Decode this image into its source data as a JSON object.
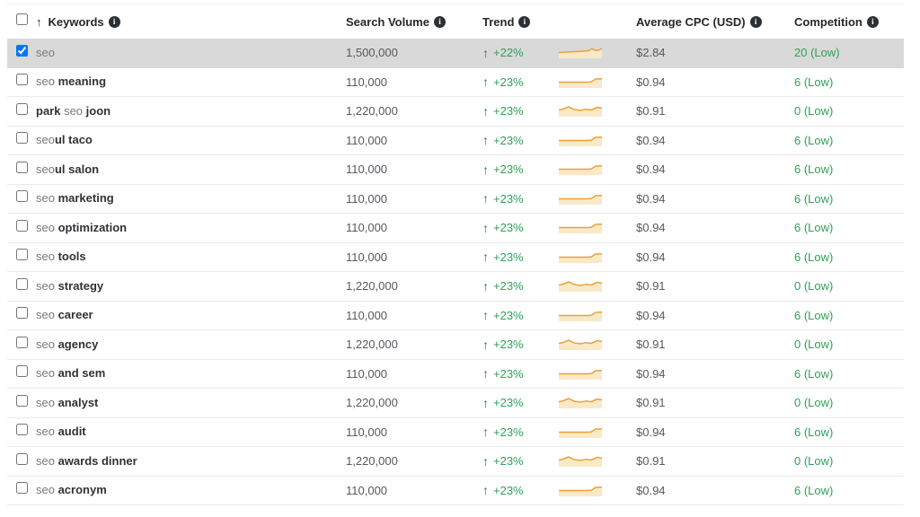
{
  "table": {
    "header": {
      "select_all_checked": false,
      "sort_arrow": "↑",
      "keywords_label": "Keywords",
      "search_volume_label": "Search Volume",
      "trend_label": "Trend",
      "avg_cpc_label": "Average CPC (USD)",
      "competition_label": "Competition",
      "info_icon_glyph": "i"
    },
    "colors": {
      "selected_row_bg": "#d9d9d9",
      "green_text": "#2ea157",
      "green_arrow": "#1d7d41",
      "spark_stroke": "#e9a23b",
      "spark_fill": "#f8e9c8"
    },
    "rows": [
      {
        "checked": true,
        "selected": true,
        "keyword_parts": [
          {
            "text": "seo",
            "bold": false
          }
        ],
        "search_volume": "1,500,000",
        "trend_arrow": "↑",
        "trend": "+22%",
        "spark": "rise-wiggle",
        "avg_cpc": "$2.84",
        "competition": "20 (Low)"
      },
      {
        "checked": false,
        "selected": false,
        "keyword_parts": [
          {
            "text": "seo",
            "bold": false
          },
          {
            "text": " meaning",
            "bold": true
          }
        ],
        "search_volume": "110,000",
        "trend_arrow": "↑",
        "trend": "+23%",
        "spark": "step",
        "avg_cpc": "$0.94",
        "competition": "6 (Low)"
      },
      {
        "checked": false,
        "selected": false,
        "keyword_parts": [
          {
            "text": "park ",
            "bold": true
          },
          {
            "text": "seo",
            "bold": false
          },
          {
            "text": " joon",
            "bold": true
          }
        ],
        "search_volume": "1,220,000",
        "trend_arrow": "↑",
        "trend": "+23%",
        "spark": "wavy",
        "avg_cpc": "$0.91",
        "competition": "0 (Low)"
      },
      {
        "checked": false,
        "selected": false,
        "keyword_parts": [
          {
            "text": "seo",
            "bold": false
          },
          {
            "text": "ul taco",
            "bold": true
          }
        ],
        "search_volume": "110,000",
        "trend_arrow": "↑",
        "trend": "+23%",
        "spark": "step",
        "avg_cpc": "$0.94",
        "competition": "6 (Low)"
      },
      {
        "checked": false,
        "selected": false,
        "keyword_parts": [
          {
            "text": "seo",
            "bold": false
          },
          {
            "text": "ul salon",
            "bold": true
          }
        ],
        "search_volume": "110,000",
        "trend_arrow": "↑",
        "trend": "+23%",
        "spark": "step",
        "avg_cpc": "$0.94",
        "competition": "6 (Low)"
      },
      {
        "checked": false,
        "selected": false,
        "keyword_parts": [
          {
            "text": "seo",
            "bold": false
          },
          {
            "text": " marketing",
            "bold": true
          }
        ],
        "search_volume": "110,000",
        "trend_arrow": "↑",
        "trend": "+23%",
        "spark": "step",
        "avg_cpc": "$0.94",
        "competition": "6 (Low)"
      },
      {
        "checked": false,
        "selected": false,
        "keyword_parts": [
          {
            "text": "seo",
            "bold": false
          },
          {
            "text": " optimization",
            "bold": true
          }
        ],
        "search_volume": "110,000",
        "trend_arrow": "↑",
        "trend": "+23%",
        "spark": "step",
        "avg_cpc": "$0.94",
        "competition": "6 (Low)"
      },
      {
        "checked": false,
        "selected": false,
        "keyword_parts": [
          {
            "text": "seo",
            "bold": false
          },
          {
            "text": " tools",
            "bold": true
          }
        ],
        "search_volume": "110,000",
        "trend_arrow": "↑",
        "trend": "+23%",
        "spark": "step",
        "avg_cpc": "$0.94",
        "competition": "6 (Low)"
      },
      {
        "checked": false,
        "selected": false,
        "keyword_parts": [
          {
            "text": "seo",
            "bold": false
          },
          {
            "text": " strategy",
            "bold": true
          }
        ],
        "search_volume": "1,220,000",
        "trend_arrow": "↑",
        "trend": "+23%",
        "spark": "wavy",
        "avg_cpc": "$0.91",
        "competition": "0 (Low)"
      },
      {
        "checked": false,
        "selected": false,
        "keyword_parts": [
          {
            "text": "seo",
            "bold": false
          },
          {
            "text": " career",
            "bold": true
          }
        ],
        "search_volume": "110,000",
        "trend_arrow": "↑",
        "trend": "+23%",
        "spark": "step",
        "avg_cpc": "$0.94",
        "competition": "6 (Low)"
      },
      {
        "checked": false,
        "selected": false,
        "keyword_parts": [
          {
            "text": "seo",
            "bold": false
          },
          {
            "text": " agency",
            "bold": true
          }
        ],
        "search_volume": "1,220,000",
        "trend_arrow": "↑",
        "trend": "+23%",
        "spark": "wavy",
        "avg_cpc": "$0.91",
        "competition": "0 (Low)"
      },
      {
        "checked": false,
        "selected": false,
        "keyword_parts": [
          {
            "text": "seo",
            "bold": false
          },
          {
            "text": " and sem",
            "bold": true
          }
        ],
        "search_volume": "110,000",
        "trend_arrow": "↑",
        "trend": "+23%",
        "spark": "step",
        "avg_cpc": "$0.94",
        "competition": "6 (Low)"
      },
      {
        "checked": false,
        "selected": false,
        "keyword_parts": [
          {
            "text": "seo",
            "bold": false
          },
          {
            "text": " analyst",
            "bold": true
          }
        ],
        "search_volume": "1,220,000",
        "trend_arrow": "↑",
        "trend": "+23%",
        "spark": "wavy",
        "avg_cpc": "$0.91",
        "competition": "0 (Low)"
      },
      {
        "checked": false,
        "selected": false,
        "keyword_parts": [
          {
            "text": "seo",
            "bold": false
          },
          {
            "text": " audit",
            "bold": true
          }
        ],
        "search_volume": "110,000",
        "trend_arrow": "↑",
        "trend": "+23%",
        "spark": "step",
        "avg_cpc": "$0.94",
        "competition": "6 (Low)"
      },
      {
        "checked": false,
        "selected": false,
        "keyword_parts": [
          {
            "text": "seo",
            "bold": false
          },
          {
            "text": " awards dinner",
            "bold": true
          }
        ],
        "search_volume": "1,220,000",
        "trend_arrow": "↑",
        "trend": "+23%",
        "spark": "wavy",
        "avg_cpc": "$0.91",
        "competition": "0 (Low)"
      },
      {
        "checked": false,
        "selected": false,
        "keyword_parts": [
          {
            "text": "seo",
            "bold": false
          },
          {
            "text": " acronym",
            "bold": true
          }
        ],
        "search_volume": "110,000",
        "trend_arrow": "↑",
        "trend": "+23%",
        "spark": "step",
        "avg_cpc": "$0.94",
        "competition": "6 (Low)"
      }
    ]
  }
}
